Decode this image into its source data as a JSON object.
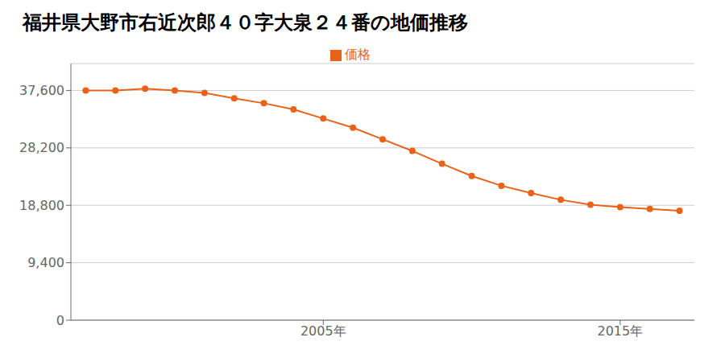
{
  "chart_data": {
    "type": "line",
    "title": "福井県大野市右近次郎４０字大泉２４番の地価推移",
    "x": [
      1997,
      1998,
      1999,
      2000,
      2001,
      2002,
      2003,
      2004,
      2005,
      2006,
      2007,
      2008,
      2009,
      2010,
      2011,
      2012,
      2013,
      2014,
      2015,
      2016,
      2017
    ],
    "series": [
      {
        "name": "価格",
        "color": "#e8621a",
        "marker": "circle",
        "values": [
          37600,
          37600,
          37900,
          37600,
          37200,
          36300,
          35500,
          34500,
          33000,
          31500,
          29600,
          27700,
          25600,
          23600,
          22000,
          20800,
          19700,
          18900,
          18500,
          18200,
          17900
        ]
      }
    ],
    "xlim": [
      1996.5,
      2017.5
    ],
    "xticks": [
      {
        "value": 2005,
        "label": "2005年"
      },
      {
        "value": 2015,
        "label": "2015年"
      }
    ],
    "ylim": [
      0,
      42000
    ],
    "yticks": [
      0,
      {
        "value": 9400,
        "label": "9,400"
      },
      {
        "value": 18800,
        "label": "18,800"
      },
      {
        "value": 28200,
        "label": "28,200"
      },
      {
        "value": 37600,
        "label": "37,600"
      }
    ],
    "grid": true,
    "legend": "top"
  }
}
